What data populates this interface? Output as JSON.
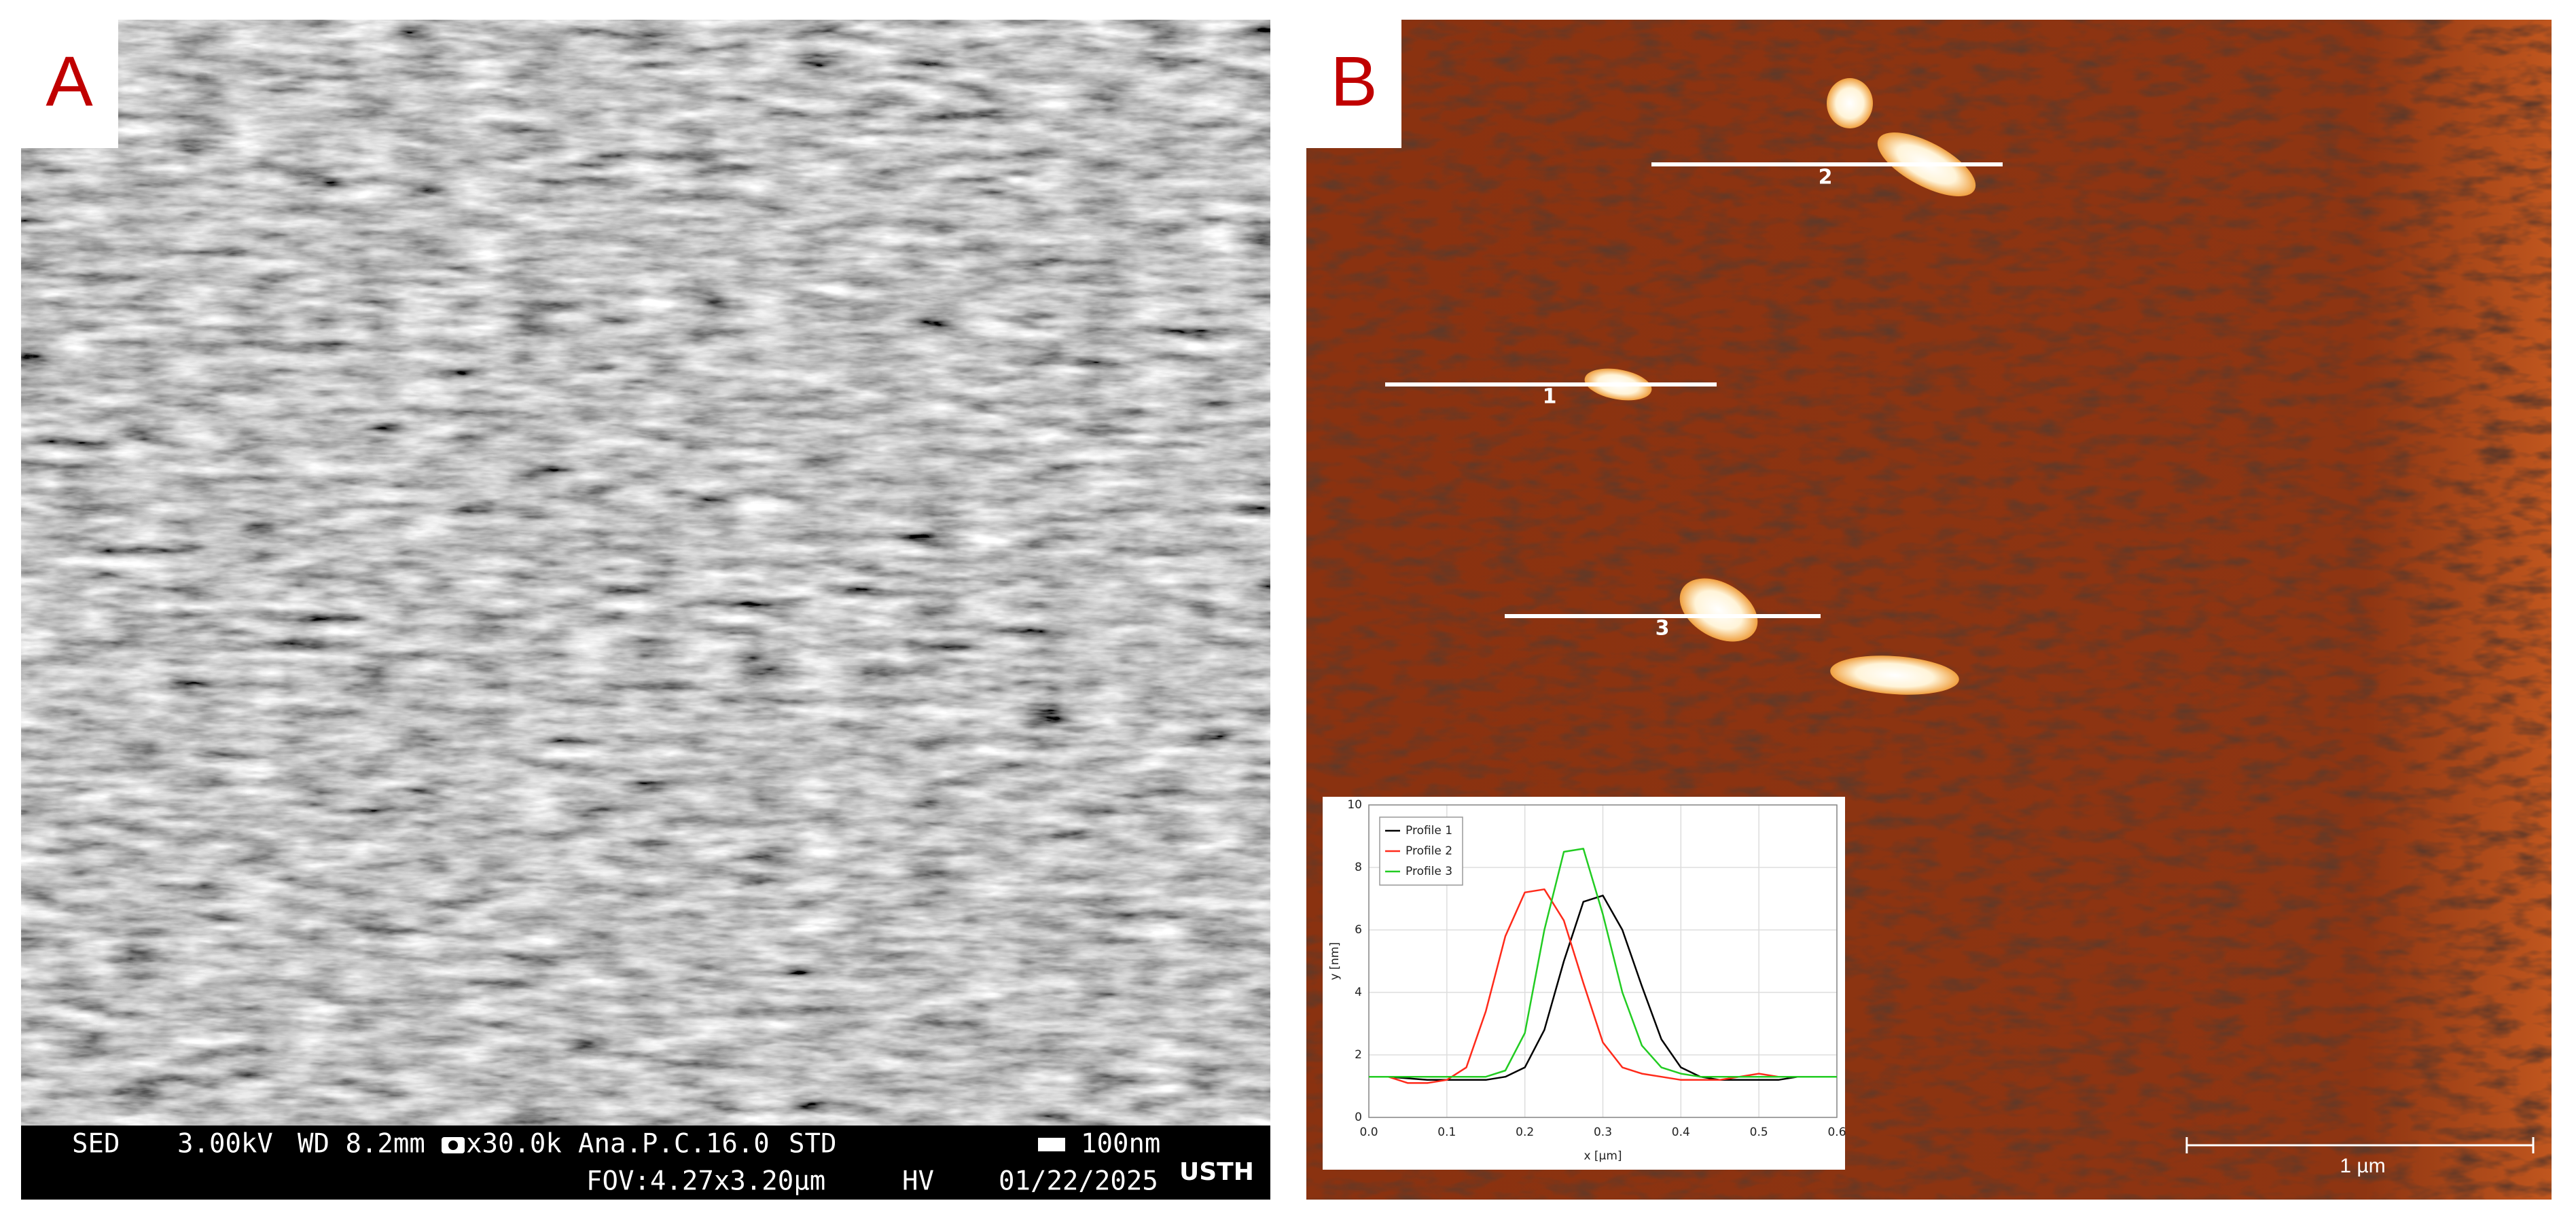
{
  "panels": [
    {
      "label": "A",
      "info_bar": {
        "row1": [
          "SED",
          "3.00kV",
          "WD 8.2mm",
          "x30.0k",
          "Ana.P.C.16.0",
          "STD",
          "100nm"
        ],
        "row2": [
          "FOV:4.27x3.20µm",
          "HV",
          "01/22/2025"
        ],
        "logo": "USTH"
      }
    },
    {
      "label": "B",
      "profile_labels": [
        "1",
        "2",
        "3"
      ],
      "scale_bar": "1 µm"
    }
  ],
  "chart_data": {
    "type": "line",
    "xlabel": "x [µm]",
    "ylabel": "y [nm]",
    "x": [
      0,
      0.025,
      0.05,
      0.075,
      0.1,
      0.125,
      0.15,
      0.175,
      0.2,
      0.225,
      0.25,
      0.275,
      0.3,
      0.325,
      0.35,
      0.375,
      0.4,
      0.425,
      0.45,
      0.475,
      0.5,
      0.525,
      0.55,
      0.575,
      0.6
    ],
    "series": [
      {
        "name": "Profile 1",
        "color": "#000000",
        "values": [
          1.3,
          1.3,
          1.25,
          1.2,
          1.2,
          1.2,
          1.2,
          1.3,
          1.6,
          2.8,
          5.0,
          6.9,
          7.1,
          6.0,
          4.2,
          2.5,
          1.6,
          1.3,
          1.2,
          1.2,
          1.2,
          1.2,
          1.3,
          1.3,
          1.3
        ]
      },
      {
        "name": "Profile 2",
        "color": "#ff2a1a",
        "values": [
          1.3,
          1.3,
          1.1,
          1.1,
          1.2,
          1.6,
          3.4,
          5.8,
          7.2,
          7.3,
          6.3,
          4.3,
          2.4,
          1.6,
          1.4,
          1.3,
          1.2,
          1.2,
          1.2,
          1.3,
          1.4,
          1.3,
          1.3,
          1.3,
          1.3
        ]
      },
      {
        "name": "Profile 3",
        "color": "#22cc22",
        "values": [
          1.3,
          1.3,
          1.3,
          1.3,
          1.3,
          1.3,
          1.3,
          1.5,
          2.7,
          6.0,
          8.5,
          8.6,
          6.5,
          4.0,
          2.3,
          1.6,
          1.4,
          1.3,
          1.3,
          1.3,
          1.3,
          1.3,
          1.3,
          1.3,
          1.3
        ]
      }
    ],
    "xlim": [
      0,
      0.6
    ],
    "xticks": [
      {
        "value": 0,
        "label": "0.0"
      },
      0.1,
      0.2,
      0.3,
      0.4,
      0.5,
      0.6
    ],
    "ylim": [
      0,
      10
    ],
    "yticks": [
      0,
      2,
      4,
      6,
      8,
      10
    ],
    "grid": true,
    "legend": "upper left"
  }
}
